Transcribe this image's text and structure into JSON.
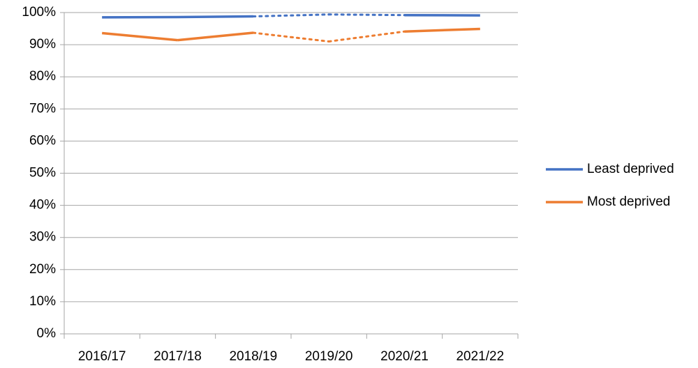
{
  "chart_data": {
    "type": "line",
    "categories": [
      "2016/17",
      "2017/18",
      "2018/19",
      "2019/20",
      "2020/21",
      "2021/22"
    ],
    "series": [
      {
        "name": "Least deprived",
        "color": "#4472c4",
        "values": [
          98.5,
          98.6,
          98.8,
          99.4,
          99.2,
          99.1
        ],
        "dotted_segments": [
          2,
          3
        ]
      },
      {
        "name": "Most deprived",
        "color": "#ed7d31",
        "values": [
          93.6,
          91.4,
          93.7,
          91.0,
          94.1,
          94.9
        ],
        "dotted_segments": [
          2,
          3
        ]
      }
    ],
    "ylim": [
      0,
      100
    ],
    "yticks": [
      {
        "value": 0,
        "label": "0%"
      },
      {
        "value": 10,
        "label": "10%"
      },
      {
        "value": 20,
        "label": "20%"
      },
      {
        "value": 30,
        "label": "30%"
      },
      {
        "value": 40,
        "label": "40%"
      },
      {
        "value": 50,
        "label": "50%"
      },
      {
        "value": 60,
        "label": "60%"
      },
      {
        "value": 70,
        "label": "70%"
      },
      {
        "value": 80,
        "label": "80%"
      },
      {
        "value": 90,
        "label": "90%"
      },
      {
        "value": 100,
        "label": "100%"
      }
    ],
    "grid": true,
    "legend": "right"
  }
}
